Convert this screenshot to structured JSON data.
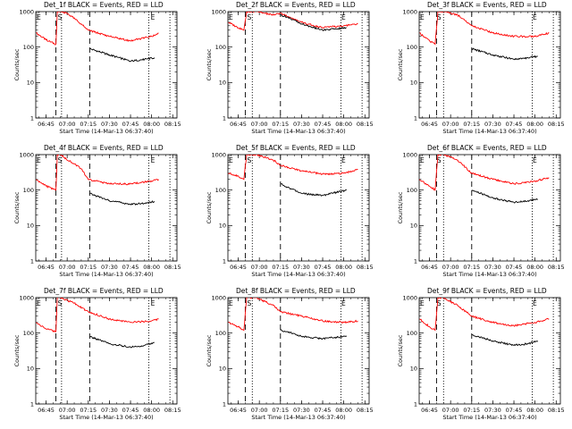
{
  "figure": {
    "x_tick_labels": [
      "06:45",
      "07:00",
      "07:15",
      "07:30",
      "07:45",
      "08:00",
      "08:15"
    ],
    "y_tick_labels": [
      "1",
      "10",
      "100",
      "1000"
    ],
    "xlabel": "Start Time (14-Mar-13 06:37:40)",
    "ylabel": "Counts/sec",
    "colors": {
      "events": "#000000",
      "lld": "#ff0000",
      "axes": "#000000",
      "background": "#ffffff"
    }
  },
  "chart_data": [
    {
      "type": "line",
      "title": "Det_1f BLACK = Events, RED = LLD",
      "xlabel": "Start Time (14-Mar-13 06:37:40)",
      "ylabel": "Counts/sec",
      "y_scale": "log",
      "ylim": [
        1,
        1000
      ],
      "xlim": [
        "06:37:40",
        "08:18:00"
      ],
      "x_ticks": [
        "06:45",
        "07:00",
        "07:15",
        "07:30",
        "07:45",
        "08:00",
        "08:15"
      ],
      "markers": {
        "dashed_lines": [
          "06:52",
          "07:16"
        ],
        "dotted_lines": [
          "06:56",
          "07:58",
          "08:13"
        ],
        "letters": [
          {
            "text": "E",
            "x": "06:38"
          },
          {
            "text": "S",
            "x": "06:53"
          },
          {
            "text": "E",
            "x": "07:59"
          }
        ]
      },
      "series": [
        {
          "color": "#ff0000",
          "x": [
            "06:38",
            "06:45",
            "06:52",
            "06:53",
            "06:55",
            "07:00",
            "07:10",
            "07:15",
            "07:30",
            "07:45",
            "08:00",
            "08:05"
          ],
          "y": [
            250,
            160,
            120,
            1000,
            1000,
            900,
            450,
            300,
            200,
            150,
            200,
            250
          ]
        },
        {
          "color": "#000000",
          "x": [
            "07:16",
            "07:30",
            "07:45",
            "07:55",
            "08:02"
          ],
          "y": [
            90,
            60,
            40,
            45,
            50
          ]
        }
      ]
    },
    {
      "type": "line",
      "title": "Det_2f BLACK = Events, RED = LLD",
      "xlabel": "Start Time (14-Mar-13 06:37:40)",
      "ylabel": "Counts/sec",
      "y_scale": "log",
      "ylim": [
        1,
        1000
      ],
      "xlim": [
        "06:37:40",
        "08:18:00"
      ],
      "x_ticks": [
        "06:45",
        "07:00",
        "07:15",
        "07:30",
        "07:45",
        "08:00",
        "08:15"
      ],
      "markers": {
        "dashed_lines": [
          "06:50",
          "07:15"
        ],
        "dotted_lines": [
          "06:55",
          "07:58",
          "08:13"
        ],
        "letters": [
          {
            "text": "E",
            "x": "06:38"
          },
          {
            "text": "S",
            "x": "06:51"
          },
          {
            "text": "E",
            "x": "07:58"
          }
        ]
      },
      "series": [
        {
          "color": "#ff0000",
          "x": [
            "06:38",
            "06:45",
            "06:49",
            "06:51",
            "06:58",
            "07:10",
            "07:15",
            "07:30",
            "07:45",
            "08:00",
            "08:10"
          ],
          "y": [
            500,
            350,
            300,
            1000,
            1000,
            800,
            900,
            500,
            350,
            400,
            450
          ]
        },
        {
          "color": "#000000",
          "x": [
            "07:15",
            "07:20",
            "07:30",
            "07:45",
            "08:02"
          ],
          "y": [
            800,
            700,
            450,
            300,
            350
          ]
        }
      ]
    },
    {
      "type": "line",
      "title": "Det_3f BLACK = Events, RED = LLD",
      "xlabel": "Start Time (14-Mar-13 06:37:40)",
      "ylabel": "Counts/sec",
      "y_scale": "log",
      "ylim": [
        1,
        1000
      ],
      "xlim": [
        "06:37:40",
        "08:18:00"
      ],
      "x_ticks": [
        "06:45",
        "07:00",
        "07:15",
        "07:30",
        "07:45",
        "08:00",
        "08:15"
      ],
      "markers": {
        "dashed_lines": [
          "06:50",
          "07:15"
        ],
        "dotted_lines": [
          "06:55",
          "07:58",
          "08:13"
        ],
        "letters": [
          {
            "text": "E",
            "x": "06:38"
          },
          {
            "text": "S",
            "x": "06:50"
          },
          {
            "text": "E",
            "x": "07:58"
          }
        ]
      },
      "series": [
        {
          "color": "#ff0000",
          "x": [
            "06:38",
            "06:45",
            "06:49",
            "06:51",
            "06:55",
            "07:05",
            "07:15",
            "07:30",
            "07:45",
            "08:00",
            "08:10"
          ],
          "y": [
            250,
            150,
            120,
            1000,
            1000,
            800,
            400,
            250,
            200,
            200,
            250
          ]
        },
        {
          "color": "#000000",
          "x": [
            "07:15",
            "07:30",
            "07:45",
            "07:55",
            "08:02"
          ],
          "y": [
            90,
            60,
            45,
            50,
            55
          ]
        }
      ]
    },
    {
      "type": "line",
      "title": "Det_4f BLACK = Events, RED = LLD",
      "xlabel": "Start Time (14-Mar-13 06:37:40)",
      "ylabel": "Counts/sec",
      "y_scale": "log",
      "ylim": [
        1,
        1000
      ],
      "xlim": [
        "06:37:40",
        "08:18:00"
      ],
      "x_ticks": [
        "06:45",
        "07:00",
        "07:15",
        "07:30",
        "07:45",
        "08:00",
        "08:15"
      ],
      "markers": {
        "dashed_lines": [
          "06:52",
          "07:16"
        ],
        "dotted_lines": [
          "06:56",
          "07:58",
          "08:13"
        ],
        "letters": [
          {
            "text": "E",
            "x": "06:38"
          },
          {
            "text": "S",
            "x": "06:53"
          },
          {
            "text": "E",
            "x": "07:59"
          }
        ]
      },
      "series": [
        {
          "color": "#ff0000",
          "x": [
            "06:38",
            "06:45",
            "06:52",
            "06:53",
            "06:55",
            "07:10",
            "07:15",
            "07:30",
            "07:45",
            "08:00",
            "08:05"
          ],
          "y": [
            200,
            130,
            100,
            1000,
            1000,
            400,
            200,
            150,
            150,
            180,
            200
          ]
        },
        {
          "color": "#000000",
          "x": [
            "07:16",
            "07:30",
            "07:45",
            "07:55",
            "08:02"
          ],
          "y": [
            80,
            50,
            40,
            42,
            48
          ]
        }
      ]
    },
    {
      "type": "line",
      "title": "Det_5f BLACK = Events, RED = LLD",
      "xlabel": "Start Time (14-Mar-13 06:37:40)",
      "ylabel": "Counts/sec",
      "y_scale": "log",
      "ylim": [
        1,
        1000
      ],
      "xlim": [
        "06:37:40",
        "08:18:00"
      ],
      "x_ticks": [
        "06:45",
        "07:00",
        "07:15",
        "07:30",
        "07:45",
        "08:00",
        "08:15"
      ],
      "markers": {
        "dashed_lines": [
          "06:50",
          "07:15"
        ],
        "dotted_lines": [
          "06:55",
          "07:58",
          "08:13"
        ],
        "letters": [
          {
            "text": "E",
            "x": "06:38"
          },
          {
            "text": "S",
            "x": "06:51"
          },
          {
            "text": "E",
            "x": "07:58"
          }
        ]
      },
      "series": [
        {
          "color": "#ff0000",
          "x": [
            "06:38",
            "06:45",
            "06:49",
            "06:51",
            "06:58",
            "07:10",
            "07:15",
            "07:30",
            "07:45",
            "08:00",
            "08:10"
          ],
          "y": [
            300,
            250,
            200,
            1000,
            1000,
            700,
            500,
            350,
            280,
            300,
            380
          ]
        },
        {
          "color": "#000000",
          "x": [
            "07:15",
            "07:20",
            "07:30",
            "07:45",
            "08:02"
          ],
          "y": [
            150,
            120,
            80,
            70,
            100
          ]
        }
      ]
    },
    {
      "type": "line",
      "title": "Det_6f BLACK = Events, RED = LLD",
      "xlabel": "Start Time (14-Mar-13 06:37:40)",
      "ylabel": "Counts/sec",
      "y_scale": "log",
      "ylim": [
        1,
        1000
      ],
      "xlim": [
        "06:37:40",
        "08:18:00"
      ],
      "x_ticks": [
        "06:45",
        "07:00",
        "07:15",
        "07:30",
        "07:45",
        "08:00",
        "08:15"
      ],
      "markers": {
        "dashed_lines": [
          "06:50",
          "07:15"
        ],
        "dotted_lines": [
          "06:55",
          "07:58",
          "08:13"
        ],
        "letters": [
          {
            "text": "E",
            "x": "06:38"
          },
          {
            "text": "S",
            "x": "06:50"
          },
          {
            "text": "E",
            "x": "07:58"
          }
        ]
      },
      "series": [
        {
          "color": "#ff0000",
          "x": [
            "06:38",
            "06:45",
            "06:49",
            "06:51",
            "06:55",
            "07:05",
            "07:15",
            "07:30",
            "07:45",
            "08:00",
            "08:10"
          ],
          "y": [
            200,
            130,
            100,
            1000,
            1000,
            700,
            300,
            200,
            150,
            180,
            220
          ]
        },
        {
          "color": "#000000",
          "x": [
            "07:15",
            "07:30",
            "07:45",
            "07:55",
            "08:02"
          ],
          "y": [
            100,
            60,
            45,
            50,
            55
          ]
        }
      ]
    },
    {
      "type": "line",
      "title": "Det_7f BLACK = Events, RED = LLD",
      "xlabel": "Start Time (14-Mar-13 06:37:40)",
      "ylabel": "Counts/sec",
      "y_scale": "log",
      "ylim": [
        1,
        1000
      ],
      "xlim": [
        "06:37:40",
        "08:18:00"
      ],
      "x_ticks": [
        "06:45",
        "07:00",
        "07:15",
        "07:30",
        "07:45",
        "08:00",
        "08:15"
      ],
      "markers": {
        "dashed_lines": [
          "06:52",
          "07:16"
        ],
        "dotted_lines": [
          "06:56",
          "07:58",
          "08:13"
        ],
        "letters": [
          {
            "text": "E",
            "x": "06:38"
          },
          {
            "text": "S",
            "x": "06:53"
          },
          {
            "text": "E",
            "x": "07:59"
          }
        ]
      },
      "series": [
        {
          "color": "#ff0000",
          "x": [
            "06:38",
            "06:45",
            "06:52",
            "06:53",
            "06:55",
            "07:05",
            "07:15",
            "07:30",
            "07:45",
            "08:00",
            "08:05"
          ],
          "y": [
            200,
            130,
            110,
            1000,
            1000,
            700,
            400,
            250,
            200,
            220,
            250
          ]
        },
        {
          "color": "#000000",
          "x": [
            "07:16",
            "07:30",
            "07:45",
            "07:55",
            "08:02"
          ],
          "y": [
            80,
            50,
            40,
            45,
            55
          ]
        }
      ]
    },
    {
      "type": "line",
      "title": "Det_8f BLACK = Events, RED = LLD",
      "xlabel": "Start Time (14-Mar-13 06:37:40)",
      "ylabel": "Counts/sec",
      "y_scale": "log",
      "ylim": [
        1,
        1000
      ],
      "xlim": [
        "06:37:40",
        "08:18:00"
      ],
      "x_ticks": [
        "06:45",
        "07:00",
        "07:15",
        "07:30",
        "07:45",
        "08:00",
        "08:15"
      ],
      "markers": {
        "dashed_lines": [
          "06:50",
          "07:15"
        ],
        "dotted_lines": [
          "06:55",
          "07:58",
          "08:13"
        ],
        "letters": [
          {
            "text": "E",
            "x": "06:38"
          },
          {
            "text": "S",
            "x": "06:51"
          },
          {
            "text": "E",
            "x": "07:58"
          }
        ]
      },
      "series": [
        {
          "color": "#ff0000",
          "x": [
            "06:38",
            "06:45",
            "06:49",
            "06:51",
            "06:58",
            "07:10",
            "07:15",
            "07:30",
            "07:45",
            "08:00",
            "08:10"
          ],
          "y": [
            200,
            150,
            120,
            1000,
            1000,
            600,
            400,
            300,
            220,
            200,
            220
          ]
        },
        {
          "color": "#000000",
          "x": [
            "07:15",
            "07:20",
            "07:30",
            "07:45",
            "08:02"
          ],
          "y": [
            120,
            110,
            80,
            70,
            80
          ]
        }
      ]
    },
    {
      "type": "line",
      "title": "Det_9f BLACK = Events, RED = LLD",
      "xlabel": "Start Time (14-Mar-13 06:37:40)",
      "ylabel": "Counts/sec",
      "y_scale": "log",
      "ylim": [
        1,
        1000
      ],
      "xlim": [
        "06:37:40",
        "08:18:00"
      ],
      "x_ticks": [
        "06:45",
        "07:00",
        "07:15",
        "07:30",
        "07:45",
        "08:00",
        "08:15"
      ],
      "markers": {
        "dashed_lines": [
          "06:50",
          "07:15"
        ],
        "dotted_lines": [
          "06:55",
          "07:58",
          "08:13"
        ],
        "letters": [
          {
            "text": "E",
            "x": "06:38"
          },
          {
            "text": "S",
            "x": "06:50"
          },
          {
            "text": "E",
            "x": "07:58"
          }
        ]
      },
      "series": [
        {
          "color": "#ff0000",
          "x": [
            "06:38",
            "06:45",
            "06:49",
            "06:51",
            "06:55",
            "07:05",
            "07:15",
            "07:30",
            "07:45",
            "08:00",
            "08:10"
          ],
          "y": [
            250,
            150,
            120,
            1000,
            1000,
            600,
            300,
            200,
            160,
            200,
            250
          ]
        },
        {
          "color": "#000000",
          "x": [
            "07:15",
            "07:30",
            "07:45",
            "07:55",
            "08:02"
          ],
          "y": [
            90,
            60,
            45,
            50,
            60
          ]
        }
      ]
    }
  ]
}
